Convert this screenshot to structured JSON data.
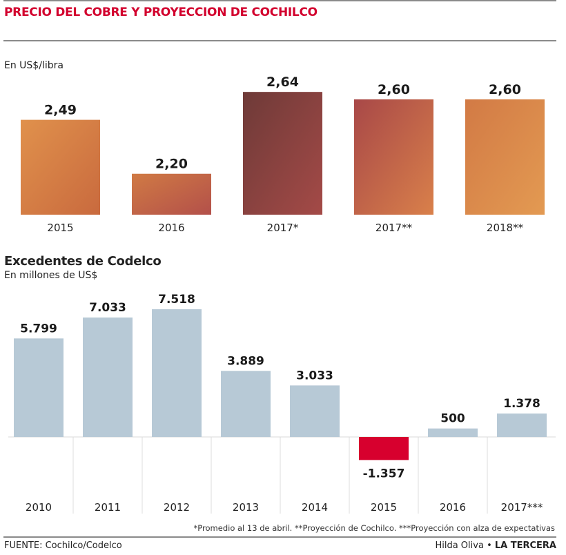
{
  "header": {
    "title": "PRECIO DEL COBRE Y PROYECCION DE COCHILCO"
  },
  "chart_data": [
    {
      "type": "bar",
      "title": "Precio del cobre y proyeccion de Cochilco",
      "ylabel": "En US$/libra",
      "xlabel": "",
      "categories": [
        "2015",
        "2016",
        "2017*",
        "2017**",
        "2018**"
      ],
      "values": [
        2.49,
        2.2,
        2.64,
        2.6,
        2.6
      ],
      "value_labels": [
        "2,49",
        "2,20",
        "2,64",
        "2,60",
        "2,60"
      ],
      "ylim": [
        1.98,
        2.7
      ],
      "grid": false,
      "colors": {
        "2015": [
          "#e0914c",
          "#c96a3e"
        ],
        "2016": [
          "#d07a44",
          "#b3504a"
        ],
        "2017*": [
          "#6e3a38",
          "#a44a47"
        ],
        "2017**": [
          "#a84848",
          "#d9804a"
        ],
        "2018**": [
          "#d27a45",
          "#e39a52"
        ]
      }
    },
    {
      "type": "bar",
      "title": "Excedentes de Codelco",
      "subtitle": "En millones de US$",
      "xlabel": "",
      "ylabel": "",
      "categories": [
        "2010",
        "2011",
        "2012",
        "2013",
        "2014",
        "2015",
        "2016",
        "2017***"
      ],
      "values": [
        5799,
        7033,
        7518,
        3889,
        3033,
        -1357,
        500,
        1378
      ],
      "value_labels": [
        "5.799",
        "7.033",
        "7.518",
        "3.889",
        "3.033",
        "-1.357",
        "500",
        "1.378"
      ],
      "ylim": [
        -1357,
        7518
      ],
      "grid": false,
      "positive_color": "#b7c9d6",
      "negative_color": "#d7002e"
    }
  ],
  "labels": {
    "price_unit": "En US$/libra",
    "surplus_title": "Excedentes de Codelco",
    "surplus_unit": "En millones de US$"
  },
  "footer": {
    "footnote": "*Promedio al 13 de abril. **Proyección de Cochilco. ***Proyección con alza de expectativas",
    "source": "FUENTE: Cochilco/Codelco",
    "author": "Hilda Oliva",
    "separator": "•",
    "publication": "LA TERCERA"
  },
  "colors": {
    "title": "#d2002d",
    "rule": "#8a8a8a",
    "divider": "#dddddd"
  }
}
